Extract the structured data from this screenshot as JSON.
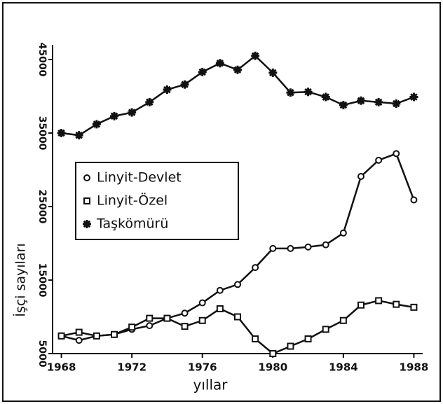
{
  "chart_data": {
    "type": "line",
    "x_label": "yıllar",
    "y_label": "İşçi sayıları",
    "x": [
      1968,
      1969,
      1970,
      1971,
      1972,
      1973,
      1974,
      1975,
      1976,
      1977,
      1978,
      1979,
      1980,
      1981,
      1982,
      1983,
      1984,
      1985,
      1986,
      1987,
      1988
    ],
    "series": [
      {
        "name": "Linyit-Devlet",
        "color": "#111111",
        "marker": "circle",
        "values": [
          7400,
          6800,
          7400,
          7600,
          8300,
          8800,
          9800,
          10500,
          11900,
          13600,
          14400,
          16700,
          19300,
          19300,
          19500,
          19800,
          21400,
          29100,
          31300,
          32200,
          25900
        ]
      },
      {
        "name": "Linyit-Özel",
        "color": "#111111",
        "marker": "square",
        "values": [
          7400,
          7900,
          7400,
          7600,
          8600,
          9800,
          9800,
          8700,
          9500,
          11100,
          10000,
          7000,
          5000,
          6000,
          7000,
          8300,
          9500,
          11600,
          12200,
          11700,
          11300
        ]
      },
      {
        "name": "Taşkömürü",
        "color": "#111111",
        "marker": "star",
        "values": [
          35000,
          34700,
          36200,
          37300,
          37800,
          39200,
          40900,
          41600,
          43300,
          44500,
          43600,
          45500,
          43200,
          40500,
          40600,
          39900,
          38800,
          39400,
          39200,
          39000,
          39900
        ]
      }
    ],
    "xlim": [
      1967.5,
      1988.5
    ],
    "xticks": [
      1968,
      1972,
      1976,
      1980,
      1984,
      1988
    ],
    "ylim": [
      5000,
      47000
    ],
    "yticks": [
      5000,
      15000,
      25000,
      35000,
      45000
    ],
    "legend": "left"
  }
}
